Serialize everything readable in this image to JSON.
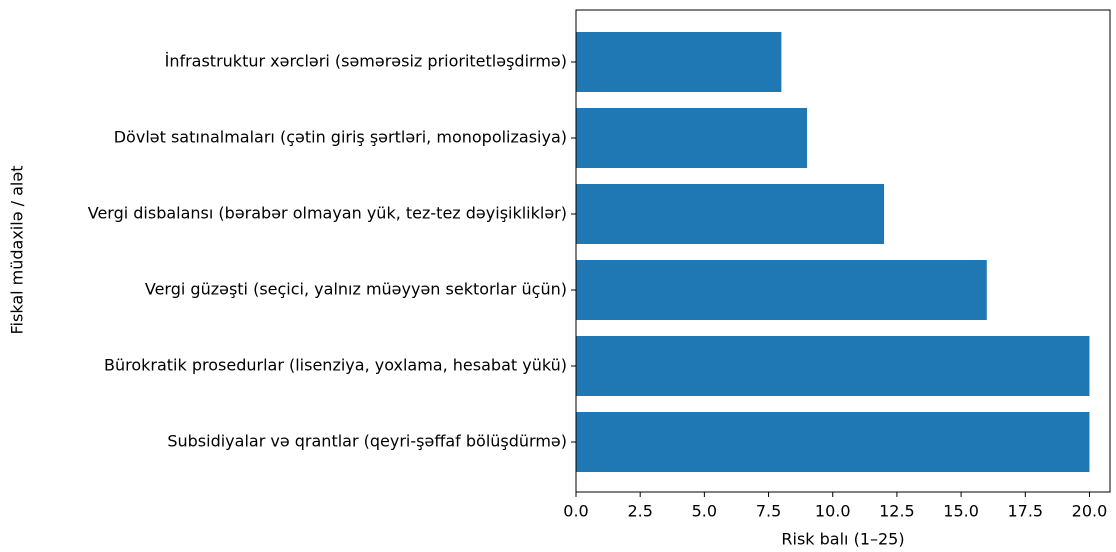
{
  "chart_data": {
    "type": "barh",
    "xlabel": "Risk balı (1–25)",
    "ylabel": "Fiskal müdaxilə / alət",
    "categories": [
      "İnfrastruktur xərcləri (səmərəsiz prioritetləşdirmə)",
      "Dövlət satınalmaları (çətin giriş şərtləri, monopolizasiya)",
      "Vergi disbalansı (bərabər olmayan yük, tez-tez dəyişikliklər)",
      "Vergi güzəşti (seçici, yalnız müəyyən sektorlar üçün)",
      "Bürokratik prosedurlar (lisenziya, yoxlama, hesabat yükü)",
      "Subsidiyalar və qrantlar (qeyri-şəffaf bölüşdürmə)"
    ],
    "values": [
      8,
      9,
      12,
      16,
      20,
      20
    ],
    "color": "#1f77b4",
    "xlim": [
      0,
      20.8
    ],
    "xticks": [
      {
        "value": 0,
        "label": "0.0"
      },
      2.5,
      {
        "value": 5,
        "label": "5.0"
      },
      7.5,
      {
        "value": 10,
        "label": "10.0"
      },
      12.5,
      {
        "value": 15,
        "label": "15.0"
      },
      17.5,
      {
        "value": 20,
        "label": "20.0"
      }
    ],
    "grid": false
  }
}
